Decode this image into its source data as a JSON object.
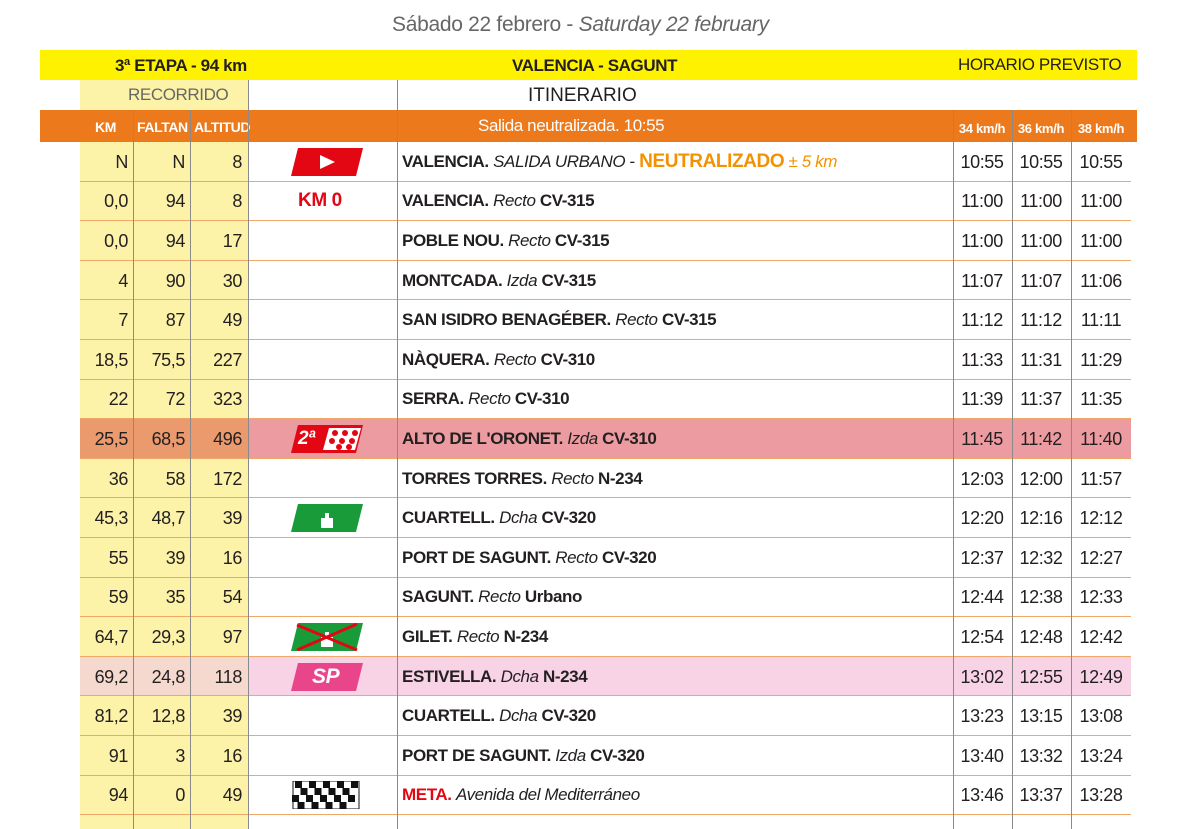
{
  "header": {
    "date_es": "Sábado 22 febrero -",
    "date_en": "Saturday 22 february",
    "stage": "3ª ETAPA - 94 km",
    "route": "VALENCIA - SAGUNT",
    "schedule": "HORARIO PREVISTO",
    "recorrido": "RECORRIDO",
    "itinerario": "ITINERARIO"
  },
  "table": {
    "columns": [
      "KM",
      "FALTAN",
      "ALTITUD"
    ],
    "start": "Salida neutralizada. 10:55",
    "speeds": [
      "34 km/h",
      "36 km/h",
      "38 km/h"
    ],
    "rows": [
      {
        "km": "N",
        "faltan": "N",
        "altitud": "8",
        "place": "VALENCIA.",
        "note": "SALIDA URBANO",
        "sep": "-",
        "highlight": "NEUTRALIZADO",
        "extra": "± 5 km",
        "times": [
          "10:55",
          "10:55",
          "10:55"
        ]
      },
      {
        "km": "0,0",
        "faltan": "94",
        "altitud": "8",
        "mark": "KM 0",
        "place": "VALENCIA.",
        "note": "Recto",
        "road": "CV-315",
        "times": [
          "11:00",
          "11:00",
          "11:00"
        ]
      },
      {
        "km": "0,0",
        "faltan": "94",
        "altitud": "17",
        "place": "POBLE NOU.",
        "note": "Recto",
        "road": "CV-315",
        "times": [
          "11:00",
          "11:00",
          "11:00"
        ]
      },
      {
        "km": "4",
        "faltan": "90",
        "altitud": "30",
        "place": "MONTCADA.",
        "note": "Izda",
        "road": "CV-315",
        "times": [
          "11:07",
          "11:07",
          "11:06"
        ]
      },
      {
        "km": "7",
        "faltan": "87",
        "altitud": "49",
        "place": "SAN ISIDRO BENAGÉBER.",
        "note": "Recto",
        "road": "CV-315",
        "times": [
          "11:12",
          "11:12",
          "11:11"
        ]
      },
      {
        "km": "18,5",
        "faltan": "75,5",
        "altitud": "227",
        "place": "NÀQUERA.",
        "note": "Recto",
        "road": "CV-310",
        "times": [
          "11:33",
          "11:31",
          "11:29"
        ]
      },
      {
        "km": "22",
        "faltan": "72",
        "altitud": "323",
        "place": "SERRA.",
        "note": "Recto",
        "road": "CV-310",
        "times": [
          "11:39",
          "11:37",
          "11:35"
        ]
      },
      {
        "km": "25,5",
        "faltan": "68,5",
        "altitud": "496",
        "mark": "2ª",
        "place": "ALTO DE L'ORONET.",
        "note": "Izda",
        "road": "CV-310",
        "times": [
          "11:45",
          "11:42",
          "11:40"
        ],
        "background": "#ec9ca0",
        "left_background": "#eb9a6e"
      },
      {
        "km": "36",
        "faltan": "58",
        "altitud": "172",
        "place": "TORRES TORRES.",
        "note": "Recto",
        "road": "N-234",
        "times": [
          "12:03",
          "12:00",
          "11:57"
        ]
      },
      {
        "km": "45,3",
        "faltan": "48,7",
        "altitud": "39",
        "place": "CUARTELL.",
        "note": "Dcha",
        "road": "CV-320",
        "times": [
          "12:20",
          "12:16",
          "12:12"
        ]
      },
      {
        "km": "55",
        "faltan": "39",
        "altitud": "16",
        "place": "PORT DE SAGUNT.",
        "note": "Recto",
        "road": "CV-320",
        "times": [
          "12:37",
          "12:32",
          "12:27"
        ]
      },
      {
        "km": "59",
        "faltan": "35",
        "altitud": "54",
        "place": "SAGUNT.",
        "note": "Recto",
        "road": "Urbano",
        "times": [
          "12:44",
          "12:38",
          "12:33"
        ]
      },
      {
        "km": "64,7",
        "faltan": "29,3",
        "altitud": "97",
        "place": "GILET.",
        "note": "Recto",
        "road": "N-234",
        "times": [
          "12:54",
          "12:48",
          "12:42"
        ]
      },
      {
        "km": "69,2",
        "faltan": "24,8",
        "altitud": "118",
        "mark": "SP",
        "place": "ESTIVELLA.",
        "note": "Dcha",
        "road": "N-234",
        "times": [
          "13:02",
          "12:55",
          "12:49"
        ],
        "background": "#f7d3e5",
        "left_background": "#f5d9cf"
      },
      {
        "km": "81,2",
        "faltan": "12,8",
        "altitud": "39",
        "place": "CUARTELL.",
        "note": "Dcha",
        "road": "CV-320",
        "times": [
          "13:23",
          "13:15",
          "13:08"
        ]
      },
      {
        "km": "91",
        "faltan": "3",
        "altitud": "16",
        "place": "PORT DE SAGUNT.",
        "note": "Izda",
        "road": "CV-320",
        "times": [
          "13:40",
          "13:32",
          "13:24"
        ]
      },
      {
        "km": "94",
        "faltan": "0",
        "altitud": "49",
        "place": "META.",
        "place_color": "#e30613",
        "note": "Avenida del Mediterráneo",
        "times": [
          "13:46",
          "13:37",
          "13:28"
        ]
      }
    ]
  }
}
